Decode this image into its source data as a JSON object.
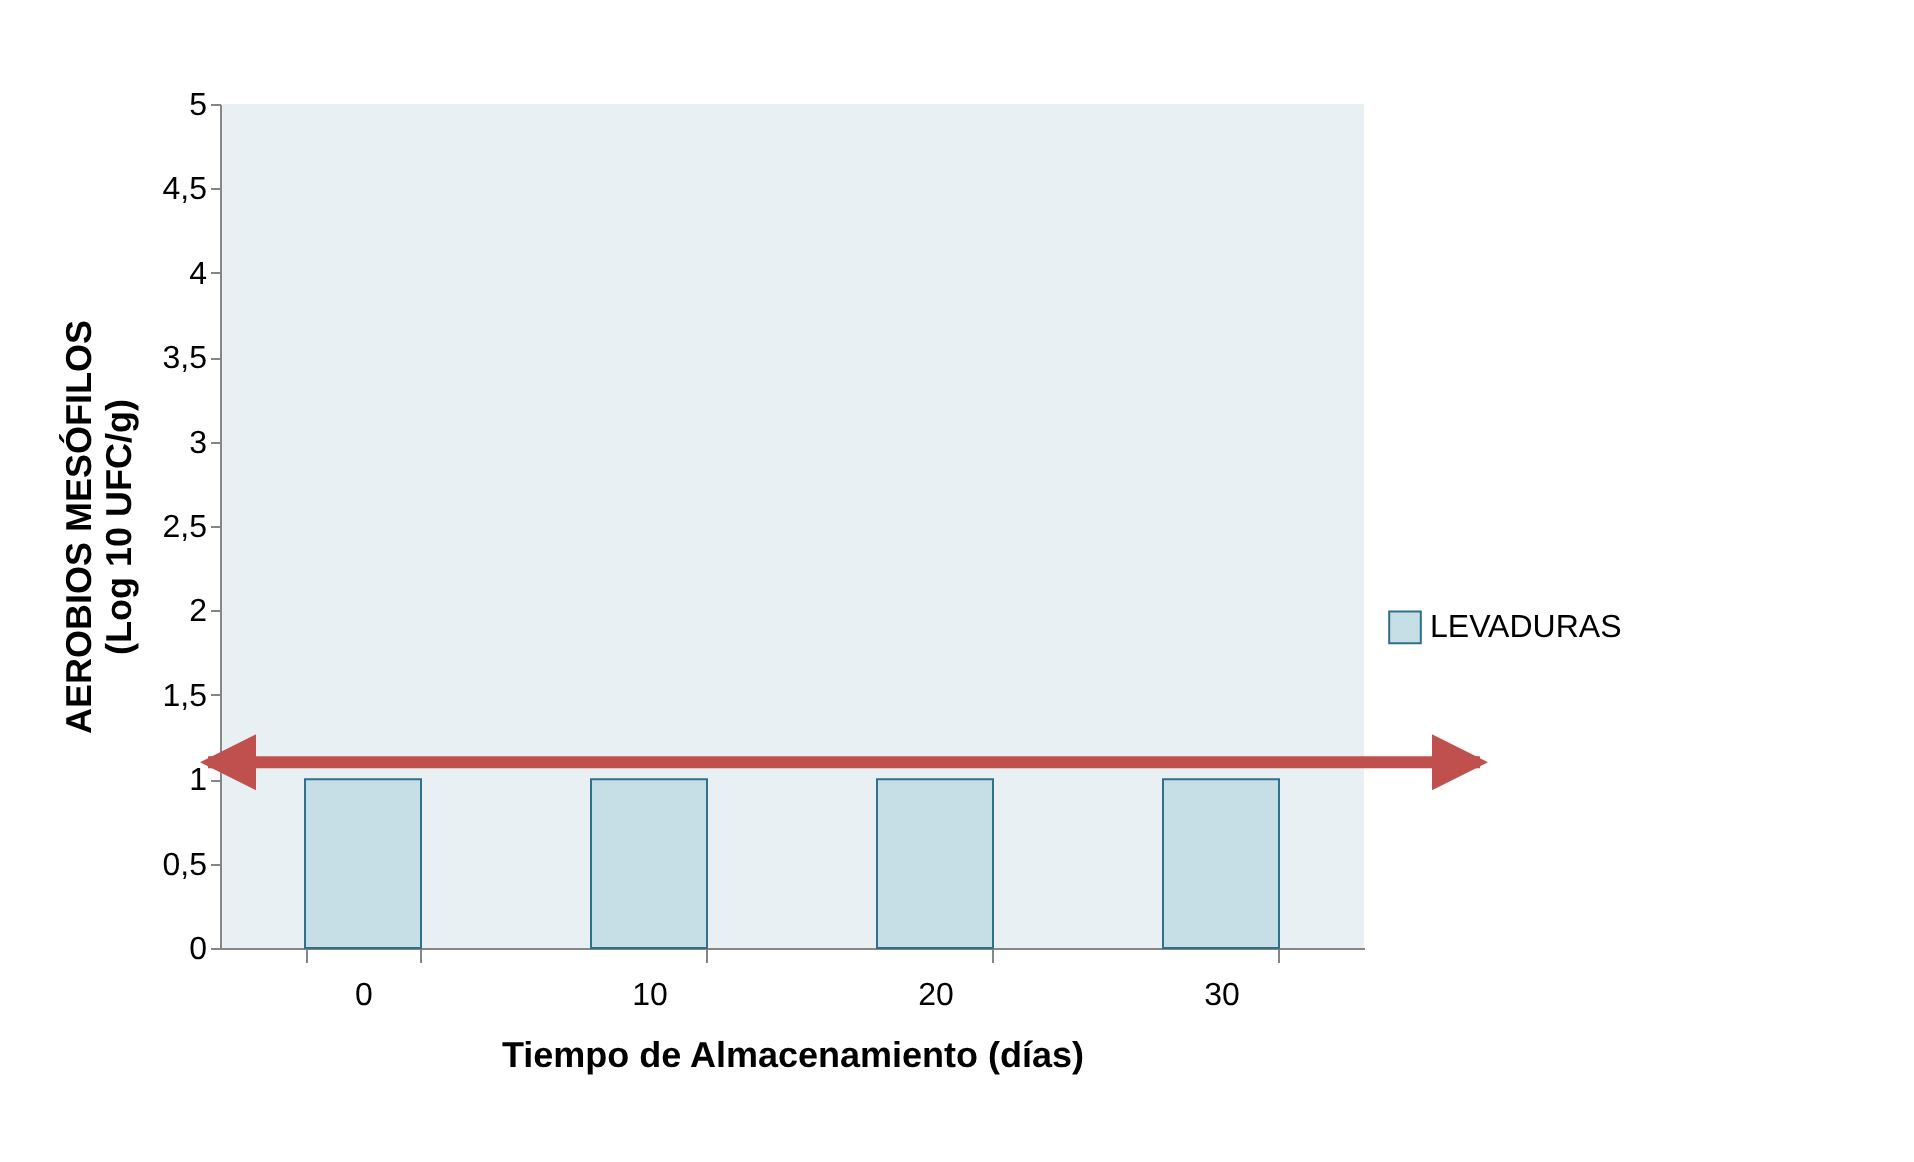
{
  "chart_data": {
    "type": "bar",
    "categories": [
      "0",
      "10",
      "20",
      "30"
    ],
    "series": [
      {
        "name": "LEVADURAS",
        "color": "#c6dfe7",
        "values": [
          1,
          1,
          1,
          1
        ]
      }
    ],
    "xlabel": "Tiempo de Almacenamiento (días)",
    "ylabel": "AEROBIOS MESÓFILOS\n(Log 10  UFC/g)",
    "ylim": [
      0,
      5
    ],
    "yticks": [
      0,
      {
        "value": 0.5,
        "label": "0,5"
      },
      1,
      {
        "value": 1.5,
        "label": "1,5"
      },
      2,
      {
        "value": 2.5,
        "label": "2,5"
      },
      3,
      {
        "value": 3.5,
        "label": "3,5"
      },
      4,
      {
        "value": 4.5,
        "label": "4,5"
      },
      5
    ],
    "ref_lines": [
      {
        "axis": "y",
        "value": 1.1,
        "color": "#c0504d"
      }
    ],
    "grid": false,
    "legend": "right"
  }
}
